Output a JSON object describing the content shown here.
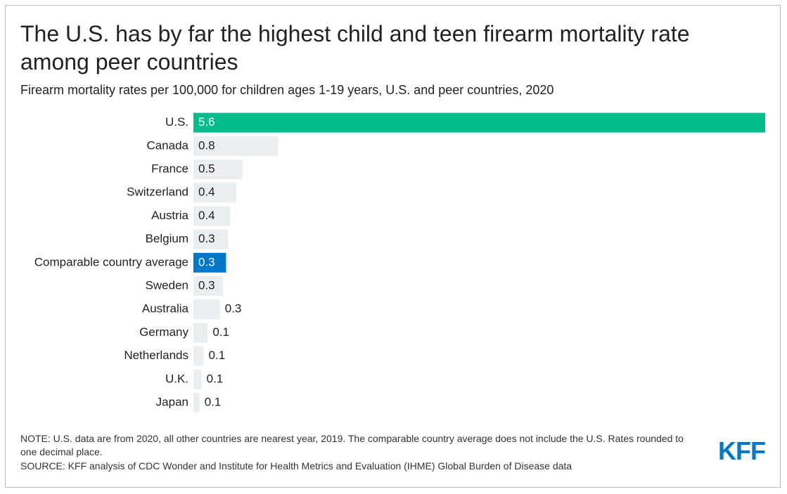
{
  "chart_data": {
    "type": "hbar",
    "title": "The U.S. has by far the highest child and teen firearm mortality rate among peer countries",
    "subtitle": "Firearm mortality rates per 100,000 for children ages 1-19 years, U.S. and peer countries, 2020",
    "categories": [
      "U.S.",
      "Canada",
      "France",
      "Switzerland",
      "Austria",
      "Belgium",
      "Comparable country average",
      "Sweden",
      "Australia",
      "Germany",
      "Netherlands",
      "U.K.",
      "Japan"
    ],
    "values": [
      5.6,
      0.83,
      0.48,
      0.42,
      0.36,
      0.34,
      0.32,
      0.29,
      0.26,
      0.14,
      0.1,
      0.08,
      0.06
    ],
    "value_labels": [
      "5.6",
      "0.8",
      "0.5",
      "0.4",
      "0.4",
      "0.3",
      "0.3",
      "0.3",
      "0.3",
      "0.1",
      "0.1",
      "0.1",
      "0.1"
    ],
    "colors": [
      "#00bd8b",
      "#e9eef1",
      "#e9eef1",
      "#e9eef1",
      "#e9eef1",
      "#e9eef1",
      "#0077c8",
      "#e9eef1",
      "#e9eef1",
      "#e9eef1",
      "#e9eef1",
      "#e9eef1",
      "#e9eef1"
    ],
    "note": "NOTE: U.S. data are from 2020, all other countries are nearest year, 2019. The comparable country average does not include the U.S. Rates rounded to one decimal place.",
    "source": "SOURCE: KFF analysis of CDC Wonder and Institute for Health Metrics and Evaluation (IHME) Global Burden of Disease data",
    "logo": "KFF"
  }
}
